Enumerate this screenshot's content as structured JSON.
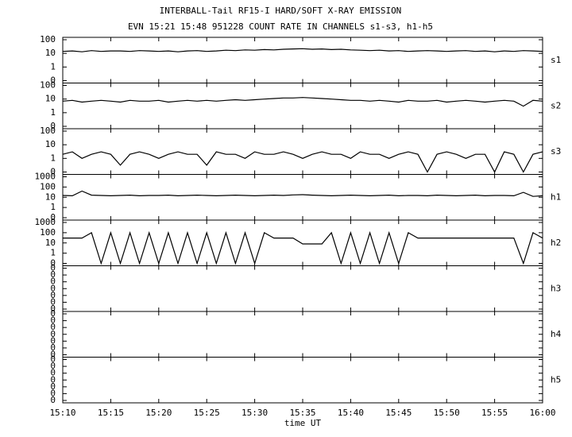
{
  "chart_data": {
    "type": "line",
    "title": "INTERBALL-Tail RF15-I HARD/SOFT X-RAY EMISSION",
    "subtitle": "EVN 15:21 15:48 951228  COUNT RATE IN CHANNELS s1-s3, h1-h5",
    "x_label": "time UT",
    "x": [
      "15:10",
      "15:11",
      "15:12",
      "15:13",
      "15:14",
      "15:15",
      "15:16",
      "15:17",
      "15:18",
      "15:19",
      "15:20",
      "15:21",
      "15:22",
      "15:23",
      "15:24",
      "15:25",
      "15:26",
      "15:27",
      "15:28",
      "15:29",
      "15:30",
      "15:31",
      "15:32",
      "15:33",
      "15:34",
      "15:35",
      "15:36",
      "15:37",
      "15:38",
      "15:39",
      "15:40",
      "15:41",
      "15:42",
      "15:43",
      "15:44",
      "15:45",
      "15:46",
      "15:47",
      "15:48",
      "15:49",
      "15:50",
      "15:51",
      "15:52",
      "15:53",
      "15:54",
      "15:55",
      "15:56",
      "15:57",
      "15:58",
      "15:59",
      "16:00"
    ],
    "xlim": [
      "15:10",
      "16:00"
    ],
    "xticks": [
      "15:10",
      "15:15",
      "15:20",
      "15:25",
      "15:30",
      "15:35",
      "15:40",
      "15:45",
      "15:50",
      "15:55",
      "16:00"
    ],
    "series": [
      {
        "name": "s1",
        "color": "#000000",
        "yscale": "symlog",
        "ylim": [
          0,
          100
        ],
        "yticks": [
          0,
          1,
          10,
          100
        ],
        "values": [
          14,
          15,
          13,
          16,
          14,
          15,
          15,
          14,
          16,
          15,
          14,
          15,
          13,
          15,
          16,
          14,
          15,
          17,
          16,
          18,
          17,
          19,
          18,
          20,
          21,
          22,
          20,
          21,
          19,
          20,
          18,
          17,
          16,
          17,
          15,
          16,
          14,
          15,
          16,
          15,
          14,
          15,
          16,
          14,
          15,
          13,
          15,
          14,
          16,
          15,
          14
        ]
      },
      {
        "name": "s2",
        "color": "#000000",
        "yscale": "symlog",
        "ylim": [
          0,
          100
        ],
        "yticks": [
          0,
          1,
          10,
          100
        ],
        "values": [
          7,
          8,
          6,
          7,
          8,
          7,
          6,
          8,
          7,
          7,
          8,
          6,
          7,
          8,
          7,
          8,
          7,
          8,
          9,
          8,
          9,
          10,
          11,
          12,
          12,
          13,
          12,
          11,
          10,
          9,
          8,
          8,
          7,
          8,
          7,
          6,
          8,
          7,
          7,
          8,
          6,
          7,
          8,
          7,
          6,
          7,
          8,
          7,
          3,
          8,
          7
        ]
      },
      {
        "name": "s3",
        "color": "#000000",
        "yscale": "symlog",
        "ylim": [
          0,
          100
        ],
        "yticks": [
          0,
          1,
          10,
          100
        ],
        "values": [
          2,
          3,
          1,
          2,
          3,
          2,
          0.5,
          2,
          3,
          2,
          1,
          2,
          3,
          2,
          2,
          0.5,
          3,
          2,
          2,
          1,
          3,
          2,
          2,
          3,
          2,
          1,
          2,
          3,
          2,
          2,
          1,
          3,
          2,
          2,
          1,
          2,
          3,
          2,
          0,
          2,
          3,
          2,
          1,
          2,
          2,
          0,
          3,
          2,
          0,
          2,
          3
        ]
      },
      {
        "name": "h1",
        "color": "#000000",
        "yscale": "symlog",
        "ylim": [
          0,
          1000
        ],
        "yticks": [
          0,
          1,
          10,
          100,
          1000
        ],
        "values": [
          15,
          14,
          40,
          16,
          15,
          14,
          15,
          16,
          14,
          15,
          15,
          16,
          14,
          15,
          16,
          15,
          14,
          15,
          16,
          15,
          14,
          15,
          16,
          15,
          17,
          18,
          16,
          15,
          14,
          15,
          16,
          15,
          14,
          15,
          16,
          14,
          15,
          15,
          14,
          16,
          15,
          14,
          15,
          16,
          14,
          15,
          15,
          14,
          30,
          12,
          14
        ]
      },
      {
        "name": "h2",
        "color": "#000000",
        "yscale": "symlog",
        "ylim": [
          0,
          1000
        ],
        "yticks": [
          0,
          1,
          10,
          100,
          1000
        ],
        "values": [
          30,
          30,
          30,
          100,
          0,
          100,
          0,
          100,
          0,
          100,
          0,
          100,
          0,
          100,
          0,
          100,
          0,
          100,
          0,
          100,
          0,
          100,
          30,
          30,
          30,
          8,
          8,
          8,
          100,
          0,
          100,
          0,
          100,
          0,
          100,
          0,
          100,
          30,
          30,
          30,
          30,
          30,
          30,
          30,
          30,
          30,
          30,
          30,
          0,
          100,
          30
        ]
      },
      {
        "name": "h3",
        "color": "#000000",
        "yscale": "linear",
        "ylim": [
          0,
          0.45
        ],
        "yticks": [
          {
            "value": 0,
            "label": "0"
          },
          {
            "value": 0.075,
            "label": "0"
          },
          {
            "value": 0.15,
            "label": "0"
          },
          {
            "value": 0.225,
            "label": "0"
          },
          {
            "value": 0.3,
            "label": "0"
          },
          {
            "value": 0.375,
            "label": "0"
          },
          {
            "value": 0.45,
            "label": "0"
          }
        ]
      },
      {
        "name": "h4",
        "color": "#000000",
        "yscale": "linear",
        "ylim": [
          0,
          0.45
        ],
        "yticks": [
          {
            "value": 0,
            "label": "0"
          },
          {
            "value": 0.075,
            "label": "0"
          },
          {
            "value": 0.15,
            "label": "0"
          },
          {
            "value": 0.225,
            "label": "0"
          },
          {
            "value": 0.3,
            "label": "0"
          },
          {
            "value": 0.375,
            "label": "0"
          },
          {
            "value": 0.45,
            "label": "0"
          }
        ]
      },
      {
        "name": "h5",
        "color": "#000000",
        "yscale": "linear",
        "ylim": [
          0,
          0.45
        ],
        "yticks": [
          {
            "value": 0,
            "label": "0"
          },
          {
            "value": 0.075,
            "label": "0"
          },
          {
            "value": 0.15,
            "label": "0"
          },
          {
            "value": 0.225,
            "label": "0"
          },
          {
            "value": 0.3,
            "label": "0"
          },
          {
            "value": 0.375,
            "label": "0"
          },
          {
            "value": 0.45,
            "label": "0"
          }
        ]
      }
    ]
  }
}
